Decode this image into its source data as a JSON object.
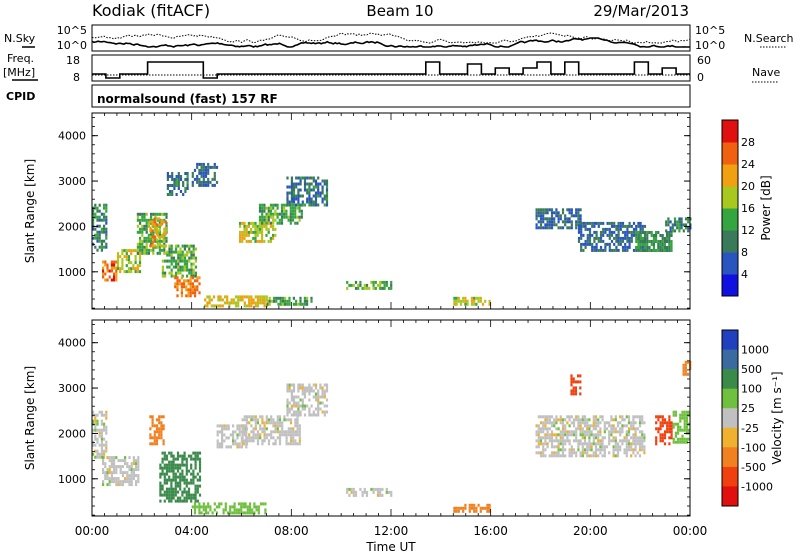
{
  "header": {
    "station": "Kodiak (fitACF)",
    "beam": "Beam 10",
    "date": "29/Mar/2013"
  },
  "summary_panels": {
    "nsky_label": "N.Sky",
    "nsearch_label": "N.Search",
    "noise_ticks_left": [
      "10^5",
      "10^0"
    ],
    "noise_ticks_right": [
      "10^5",
      "10^0"
    ],
    "freq_label_1": "Freq.",
    "freq_label_2": "[MHz]",
    "freq_ticks": [
      "18",
      "8"
    ],
    "nave_label": "Nave",
    "nave_ticks": [
      "60",
      "0"
    ],
    "cpid_label": "CPID",
    "cpid_text": "normalsound (fast) 157 RF"
  },
  "chart_data": [
    {
      "type": "heatmap",
      "panel": "power",
      "title": "",
      "xlabel": "",
      "ylabel": "Slant Range [km]",
      "xlim": [
        "00:00",
        "24:00"
      ],
      "ylim": [
        180,
        4500
      ],
      "y_ticks": [
        1000,
        2000,
        3000,
        4000
      ],
      "colorbar_label": "Power [dB]",
      "colorbar_ticks": [
        "4",
        "8",
        "12",
        "16",
        "20",
        "24",
        "28"
      ],
      "colorbar_colors": [
        "#1010e0",
        "#2a55c0",
        "#3a7a5a",
        "#35a540",
        "#a8c820",
        "#f0a010",
        "#f06010",
        "#e01010"
      ],
      "regions": [
        {
          "t0": 0.0,
          "t1": 0.6,
          "r0": 1500,
          "r1": 2500,
          "value": 10
        },
        {
          "t0": 0.4,
          "t1": 1.0,
          "r0": 850,
          "r1": 1250,
          "value": 26
        },
        {
          "t0": 1.0,
          "t1": 1.9,
          "r0": 1000,
          "r1": 1500,
          "value": 18
        },
        {
          "t0": 1.8,
          "t1": 3.0,
          "r0": 1400,
          "r1": 2300,
          "value": 14
        },
        {
          "t0": 2.3,
          "t1": 3.0,
          "r0": 1600,
          "r1": 2200,
          "value": 22
        },
        {
          "t0": 2.8,
          "t1": 4.2,
          "r0": 900,
          "r1": 1600,
          "value": 14
        },
        {
          "t0": 3.3,
          "t1": 4.3,
          "r0": 500,
          "r1": 900,
          "value": 24
        },
        {
          "t0": 3.0,
          "t1": 3.8,
          "r0": 2700,
          "r1": 3200,
          "value": 9
        },
        {
          "t0": 4.0,
          "t1": 5.0,
          "r0": 2900,
          "r1": 3400,
          "value": 8
        },
        {
          "t0": 4.5,
          "t1": 7.0,
          "r0": 280,
          "r1": 480,
          "value": 20
        },
        {
          "t0": 5.9,
          "t1": 7.4,
          "r0": 1700,
          "r1": 2100,
          "value": 18
        },
        {
          "t0": 6.7,
          "t1": 8.4,
          "r0": 2100,
          "r1": 2500,
          "value": 14
        },
        {
          "t0": 7.8,
          "t1": 9.4,
          "r0": 2500,
          "r1": 3100,
          "value": 9
        },
        {
          "t0": 7.0,
          "t1": 8.8,
          "r0": 280,
          "r1": 450,
          "value": 14
        },
        {
          "t0": 10.2,
          "t1": 12.0,
          "r0": 650,
          "r1": 800,
          "value": 14
        },
        {
          "t0": 14.5,
          "t1": 16.0,
          "r0": 300,
          "r1": 450,
          "value": 18
        },
        {
          "t0": 17.8,
          "t1": 19.6,
          "r0": 2000,
          "r1": 2400,
          "value": 8
        },
        {
          "t0": 19.5,
          "t1": 22.2,
          "r0": 1500,
          "r1": 2100,
          "value": 8
        },
        {
          "t0": 21.8,
          "t1": 23.3,
          "r0": 1500,
          "r1": 1900,
          "value": 12
        },
        {
          "t0": 23.0,
          "t1": 24.0,
          "r0": 1900,
          "r1": 2200,
          "value": 10
        }
      ]
    },
    {
      "type": "heatmap",
      "panel": "velocity",
      "title": "",
      "xlabel": "Time UT",
      "ylabel": "Slant Range [km]",
      "xlim": [
        "00:00",
        "24:00"
      ],
      "ylim": [
        180,
        4500
      ],
      "x_ticks": [
        "00:00",
        "04:00",
        "08:00",
        "12:00",
        "16:00",
        "20:00",
        "00:00"
      ],
      "y_ticks": [
        1000,
        2000,
        3000,
        4000
      ],
      "colorbar_label": "Velocity [m s⁻¹]",
      "colorbar_ticks": [
        "1000",
        "500",
        "100",
        "25",
        "-25",
        "-100",
        "-500",
        "-1000"
      ],
      "colorbar_colors": [
        "#2040c0",
        "#3a6aa0",
        "#3a8a4a",
        "#70c040",
        "#c0c0c0",
        "#f0b030",
        "#f08020",
        "#f04010",
        "#e01010"
      ],
      "regions": [
        {
          "t0": 0.0,
          "t1": 0.6,
          "r0": 1500,
          "r1": 2500,
          "value": 0
        },
        {
          "t0": 0.4,
          "t1": 1.9,
          "r0": 850,
          "r1": 1500,
          "value": 0
        },
        {
          "t0": 2.3,
          "t1": 2.9,
          "r0": 1800,
          "r1": 2400,
          "value": -400
        },
        {
          "t0": 2.7,
          "t1": 4.3,
          "r0": 500,
          "r1": 1600,
          "value": 300
        },
        {
          "t0": 4.0,
          "t1": 7.0,
          "r0": 280,
          "r1": 480,
          "value": 60
        },
        {
          "t0": 5.0,
          "t1": 6.2,
          "r0": 1700,
          "r1": 2200,
          "value": 0
        },
        {
          "t0": 6.0,
          "t1": 8.3,
          "r0": 1800,
          "r1": 2400,
          "value": 0
        },
        {
          "t0": 7.8,
          "t1": 9.4,
          "r0": 2400,
          "r1": 3100,
          "value": 0
        },
        {
          "t0": 10.2,
          "t1": 12.0,
          "r0": 650,
          "r1": 800,
          "value": 0
        },
        {
          "t0": 14.5,
          "t1": 16.0,
          "r0": 300,
          "r1": 450,
          "value": -300
        },
        {
          "t0": 17.8,
          "t1": 22.2,
          "r0": 1500,
          "r1": 2400,
          "value": 0
        },
        {
          "t0": 19.2,
          "t1": 19.6,
          "r0": 2900,
          "r1": 3300,
          "value": -800
        },
        {
          "t0": 22.6,
          "t1": 23.3,
          "r0": 1800,
          "r1": 2400,
          "value": -600
        },
        {
          "t0": 23.3,
          "t1": 24.0,
          "r0": 1800,
          "r1": 2500,
          "value": 60
        },
        {
          "t0": 23.7,
          "t1": 24.0,
          "r0": 3300,
          "r1": 3600,
          "value": -400
        }
      ]
    }
  ]
}
